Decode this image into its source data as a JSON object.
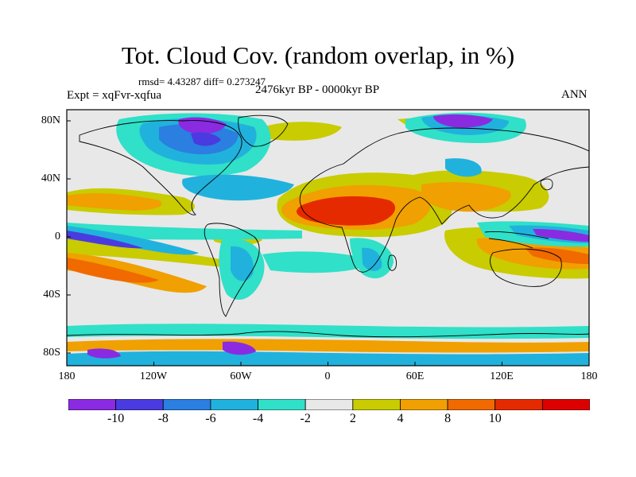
{
  "title": "Tot. Cloud Cov. (random overlap, in %)",
  "stats": "rmsd= 4.43287  diff= 0.273247",
  "experiment": "Expt = xqFvr-xqfua",
  "period": "2476kyr BP - 0000kyr BP",
  "season": "ANN",
  "lon_labels": [
    "180",
    "120W",
    "60W",
    "0",
    "60E",
    "120E",
    "180"
  ],
  "lat_labels": [
    "80N",
    "40N",
    "0",
    "40S",
    "80S"
  ],
  "colorbar": {
    "labels": [
      "-10",
      "-8",
      "-6",
      "-4",
      "-2",
      "2",
      "4",
      "8",
      "10"
    ],
    "colors": [
      "#8a2be2",
      "#4a3be0",
      "#2a7fe0",
      "#20b2dd",
      "#30e0c8",
      "#e8e8e8",
      "#c8cc00",
      "#f0a000",
      "#f06a00",
      "#e62a00",
      "#dd0000"
    ]
  },
  "map_colors": {
    "ocean_neutral": "#e8e8e8",
    "coastline": "#000000",
    "strong_negative": "#8a2be2",
    "negative": "#4a3be0",
    "mid_negative": "#2a7fe0",
    "light_negative": "#20b2dd",
    "weak_negative": "#30e0c8",
    "weak_positive": "#c8cc00",
    "positive": "#f0a000",
    "strong_positive": "#f06a00",
    "max_positive": "#e62a00"
  }
}
